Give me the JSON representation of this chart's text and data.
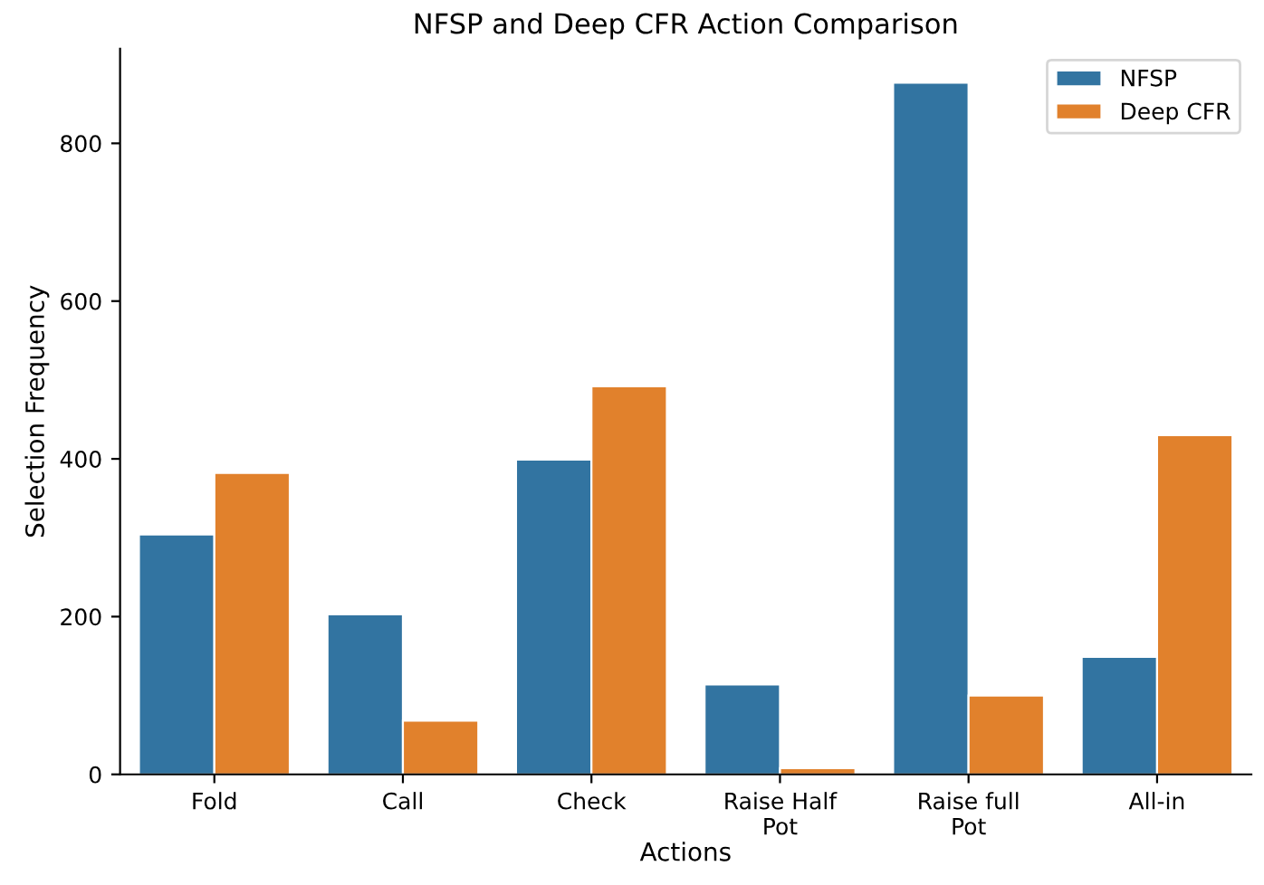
{
  "chart_data": {
    "type": "bar",
    "title": "NFSP and Deep CFR Action Comparison",
    "xlabel": "Actions",
    "ylabel": "Selection Frequency",
    "categories": [
      "Fold",
      "Call",
      "Check",
      "Raise Half\nPot",
      "Raise full\nPot",
      "All-in"
    ],
    "series": [
      {
        "name": "NFSP",
        "color": "#3274a1",
        "values": [
          304,
          203,
          399,
          114,
          877,
          149
        ]
      },
      {
        "name": "Deep CFR",
        "color": "#e1812c",
        "values": [
          382,
          68,
          492,
          8,
          100,
          430
        ]
      }
    ],
    "ylim": [
      0,
      920
    ],
    "yticks": [
      0,
      200,
      400,
      600,
      800
    ],
    "grid": false,
    "legend": "top right"
  }
}
